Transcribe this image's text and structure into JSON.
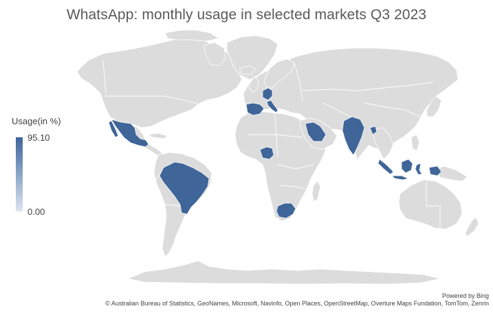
{
  "title": "WhatsApp: monthly usage in selected markets Q3 2023",
  "legend": {
    "title": "Usage(in %)",
    "max": "95.10",
    "min": "0.00",
    "color_high": "#3f6599",
    "color_low": "#dde5f0"
  },
  "map": {
    "land_color": "#dcdcdc",
    "highlighted_regions": [
      "Mexico",
      "Brazil",
      "Spain",
      "Germany",
      "Italy",
      "Nigeria",
      "South Africa",
      "Saudi Arabia",
      "India",
      "Bangladesh",
      "Indonesia"
    ]
  },
  "attribution": {
    "powered_by": "Powered by Bing",
    "credits": "© Australian Bureau of Statistics, GeoNames, Microsoft, Navinfo, Open Places, OpenStreetMap, Overture Maps Fundation, TomTom, Zenrin"
  }
}
